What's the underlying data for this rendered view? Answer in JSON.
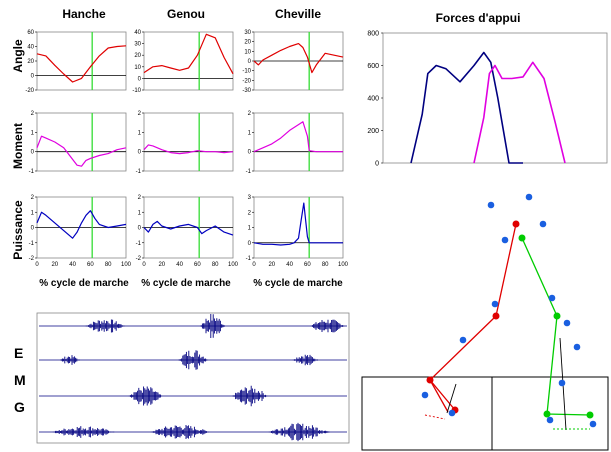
{
  "headers": {
    "hip": "Hanche",
    "knee": "Genou",
    "ankle": "Cheville",
    "forces": "Forces d'appui"
  },
  "row_labels": {
    "angle": "Angle",
    "moment": "Moment",
    "power": "Puissance"
  },
  "xlabel": "% cycle de marche",
  "emg_letters": [
    "E",
    "M",
    "G"
  ],
  "colors": {
    "angle": "#e00000",
    "moment": "#e000e0",
    "power": "#0000c0",
    "toe_off": "#33dd33",
    "force_left": "#000080",
    "force_right": "#e000e0",
    "emg": "#000080",
    "marker": "#1a5fe0",
    "leg_left": "#e00000",
    "leg_right": "#00cc00"
  },
  "chart_data": [
    {
      "type": "line",
      "joint": "Hanche",
      "quantity": "Angle",
      "ylim": [
        -20,
        60
      ],
      "yticks": [
        -20,
        0,
        20,
        40,
        60
      ],
      "x": [
        0,
        10,
        20,
        30,
        40,
        50,
        60,
        70,
        80,
        90,
        100
      ],
      "values": [
        30,
        27,
        14,
        2,
        -9,
        -4,
        12,
        27,
        38,
        40,
        41
      ],
      "toe_off": 62
    },
    {
      "type": "line",
      "joint": "Genou",
      "quantity": "Angle",
      "ylim": [
        -10,
        40
      ],
      "yticks": [
        -10,
        0,
        10,
        20,
        30,
        40
      ],
      "x": [
        0,
        10,
        20,
        30,
        40,
        50,
        60,
        70,
        80,
        90,
        100
      ],
      "values": [
        5,
        10,
        11,
        9,
        7,
        9,
        20,
        38,
        35,
        18,
        4
      ],
      "toe_off": 62
    },
    {
      "type": "line",
      "joint": "Cheville",
      "quantity": "Angle",
      "ylim": [
        -30,
        30
      ],
      "yticks": [
        -30,
        -20,
        -10,
        0,
        10,
        20,
        30
      ],
      "x": [
        0,
        5,
        10,
        20,
        30,
        40,
        50,
        55,
        60,
        65,
        70,
        80,
        90,
        100
      ],
      "values": [
        0,
        -4,
        1,
        6,
        11,
        15,
        18,
        14,
        4,
        -12,
        -4,
        8,
        6,
        4
      ],
      "toe_off": 62
    },
    {
      "type": "line",
      "joint": "Hanche",
      "quantity": "Moment",
      "ylim": [
        -1,
        2
      ],
      "yticks": [
        -1,
        0,
        1,
        2
      ],
      "x": [
        0,
        5,
        10,
        20,
        30,
        40,
        45,
        50,
        55,
        60,
        70,
        80,
        90,
        100
      ],
      "values": [
        0.2,
        0.8,
        0.7,
        0.5,
        0.2,
        -0.4,
        -0.7,
        -0.75,
        -0.45,
        -0.35,
        -0.2,
        -0.1,
        0.1,
        0.2
      ],
      "toe_off": 62
    },
    {
      "type": "line",
      "joint": "Genou",
      "quantity": "Moment",
      "ylim": [
        -1,
        2
      ],
      "yticks": [
        -1,
        0,
        1,
        2
      ],
      "x": [
        0,
        5,
        10,
        20,
        30,
        40,
        50,
        60,
        70,
        80,
        90,
        100
      ],
      "values": [
        0.1,
        0.35,
        0.3,
        0.1,
        -0.05,
        -0.1,
        -0.05,
        0.05,
        0,
        0,
        -0.05,
        0
      ],
      "toe_off": 62
    },
    {
      "type": "line",
      "joint": "Cheville",
      "quantity": "Moment",
      "ylim": [
        -1,
        2
      ],
      "yticks": [
        -1,
        0,
        1,
        2
      ],
      "x": [
        0,
        10,
        20,
        30,
        40,
        50,
        55,
        60,
        62,
        70,
        80,
        100
      ],
      "values": [
        0,
        0.2,
        0.4,
        0.7,
        1.1,
        1.4,
        1.55,
        0.8,
        0.05,
        0,
        0,
        0
      ],
      "toe_off": 62
    },
    {
      "type": "line",
      "joint": "Hanche",
      "quantity": "Puissance",
      "ylim": [
        -2,
        2
      ],
      "yticks": [
        -2,
        -1,
        0,
        1,
        2
      ],
      "x": [
        0,
        5,
        10,
        20,
        30,
        40,
        45,
        50,
        55,
        60,
        65,
        70,
        80,
        90,
        100
      ],
      "values": [
        0.3,
        1.0,
        0.8,
        0.3,
        -0.2,
        -0.7,
        -0.3,
        0.3,
        0.8,
        1.1,
        0.6,
        0.2,
        0,
        0.1,
        0.2
      ],
      "toe_off": 62
    },
    {
      "type": "line",
      "joint": "Genou",
      "quantity": "Puissance",
      "ylim": [
        -2,
        2
      ],
      "yticks": [
        -2,
        -1,
        0,
        1,
        2
      ],
      "x": [
        0,
        5,
        10,
        15,
        20,
        30,
        40,
        50,
        60,
        65,
        70,
        80,
        90,
        100
      ],
      "values": [
        0,
        -0.3,
        0.2,
        0.4,
        0.1,
        -0.1,
        0.1,
        0.2,
        0,
        -0.4,
        -0.2,
        0.1,
        -0.3,
        -0.5
      ],
      "toe_off": 62
    },
    {
      "type": "line",
      "joint": "Cheville",
      "quantity": "Puissance",
      "ylim": [
        -1,
        3
      ],
      "yticks": [
        -1,
        0,
        1,
        2,
        3
      ],
      "x": [
        0,
        10,
        20,
        30,
        40,
        45,
        50,
        53,
        56,
        58,
        60,
        62,
        65,
        70,
        80,
        100
      ],
      "values": [
        0,
        -0.1,
        -0.1,
        -0.15,
        -0.1,
        0,
        0.3,
        1.5,
        2.6,
        1.5,
        0.4,
        0,
        0,
        0,
        0,
        0
      ],
      "toe_off": 62
    },
    {
      "type": "line",
      "title": "Forces d'appui",
      "ylim": [
        0,
        800
      ],
      "yticks": [
        0,
        200,
        400,
        600,
        800
      ],
      "series": [
        {
          "x": [
            0,
            8,
            12,
            18,
            25,
            35,
            45,
            52,
            57,
            62,
            70,
            80
          ],
          "values": [
            0,
            300,
            550,
            600,
            580,
            500,
            600,
            680,
            620,
            400,
            0,
            0
          ]
        },
        {
          "x": [
            45,
            52,
            56,
            60,
            65,
            72,
            80,
            87,
            95,
            103,
            110
          ],
          "values": [
            0,
            280,
            550,
            600,
            520,
            520,
            530,
            620,
            520,
            250,
            0
          ]
        }
      ]
    }
  ]
}
